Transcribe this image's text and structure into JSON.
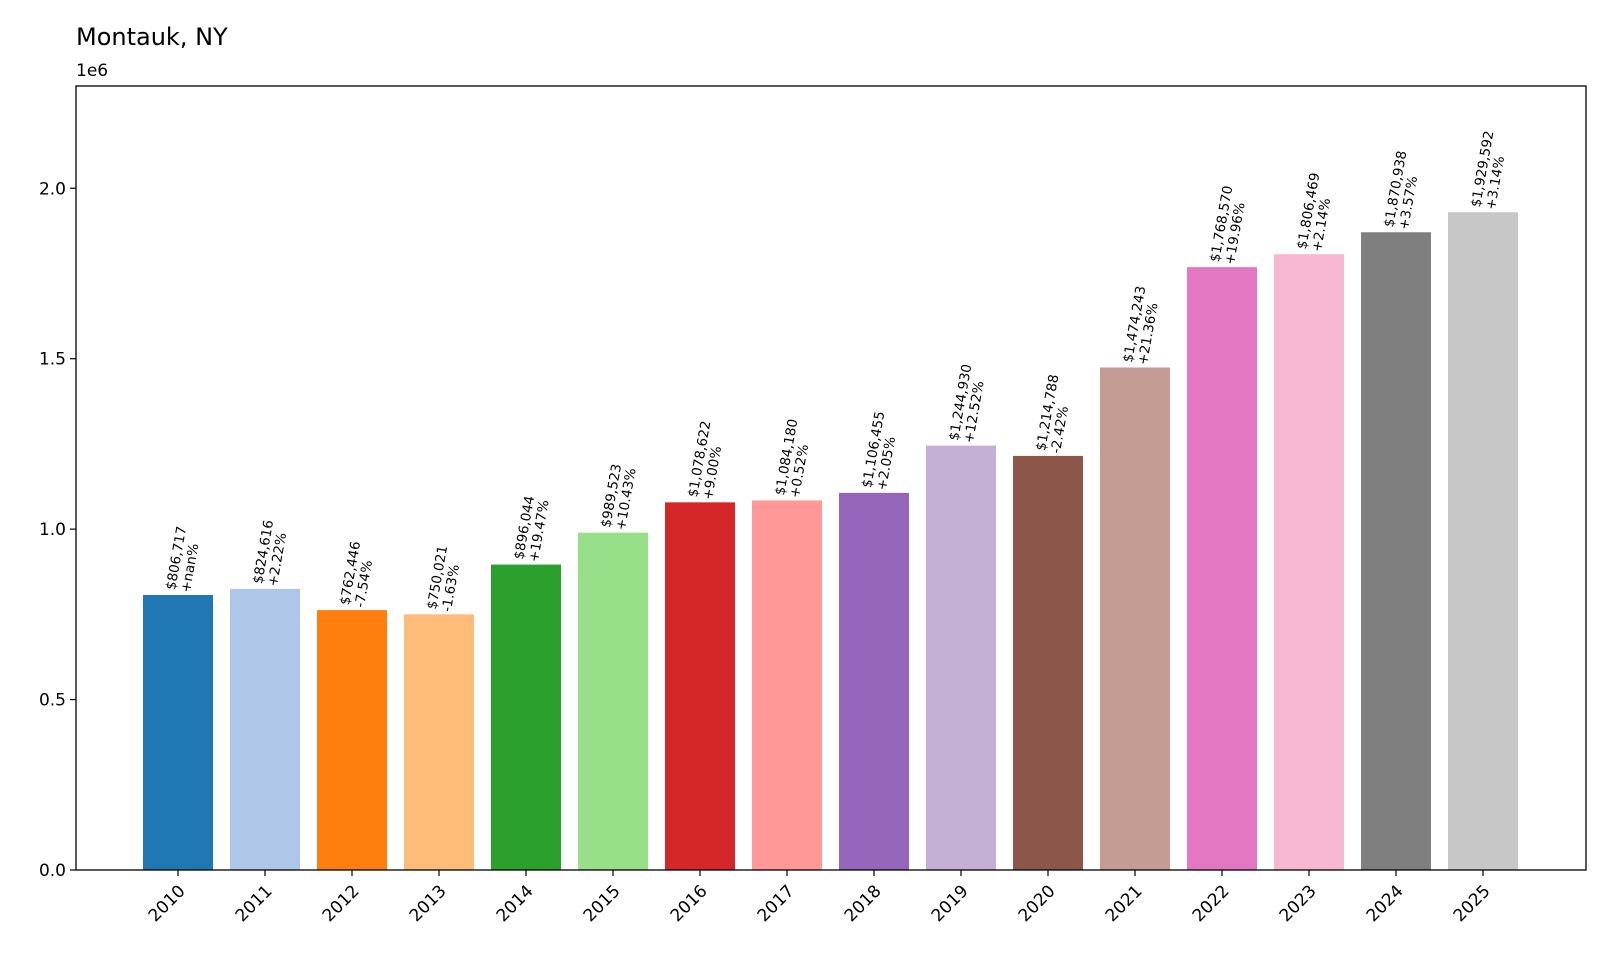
{
  "chart_data": {
    "type": "bar",
    "title": "Montauk, NY",
    "y_offset_label": "1e6",
    "xlabel": "",
    "ylabel": "",
    "ylim": [
      0,
      2300000
    ],
    "yticks": [
      0,
      500000,
      1000000,
      1500000,
      2000000
    ],
    "ytick_labels": [
      "0.0",
      "0.5",
      "1.0",
      "1.5",
      "2.0"
    ],
    "grid": false,
    "categories": [
      "2010",
      "2011",
      "2012",
      "2013",
      "2014",
      "2015",
      "2016",
      "2017",
      "2018",
      "2019",
      "2020",
      "2021",
      "2022",
      "2023",
      "2024",
      "2025"
    ],
    "values": [
      806717,
      824616,
      762446,
      750021,
      896044,
      989523,
      1078622,
      1084180,
      1106455,
      1244930,
      1214788,
      1474243,
      1768570,
      1806469,
      1870938,
      1929592
    ],
    "value_labels": [
      "$806,717",
      "$824,616",
      "$762,446",
      "$750,021",
      "$896,044",
      "$989,523",
      "$1,078,622",
      "$1,084,180",
      "$1,106,455",
      "$1,244,930",
      "$1,214,788",
      "$1,474,243",
      "$1,768,570",
      "$1,806,469",
      "$1,870,938",
      "$1,929,592"
    ],
    "change_labels": [
      "+nan%",
      "+2.22%",
      "-7.54%",
      "-1.63%",
      "+19.47%",
      "+10.43%",
      "+9.00%",
      "+0.52%",
      "+2.05%",
      "+12.52%",
      "-2.42%",
      "+21.36%",
      "+19.96%",
      "+2.14%",
      "+3.57%",
      "+3.14%"
    ],
    "colors": [
      "#1f77b4",
      "#aec7e8",
      "#ff7f0e",
      "#ffbb78",
      "#2ca02c",
      "#98df8a",
      "#d62728",
      "#ff9896",
      "#9467bd",
      "#c5b0d5",
      "#8c564b",
      "#c49c94",
      "#e377c2",
      "#f7b6d2",
      "#7f7f7f",
      "#c7c7c7"
    ]
  }
}
